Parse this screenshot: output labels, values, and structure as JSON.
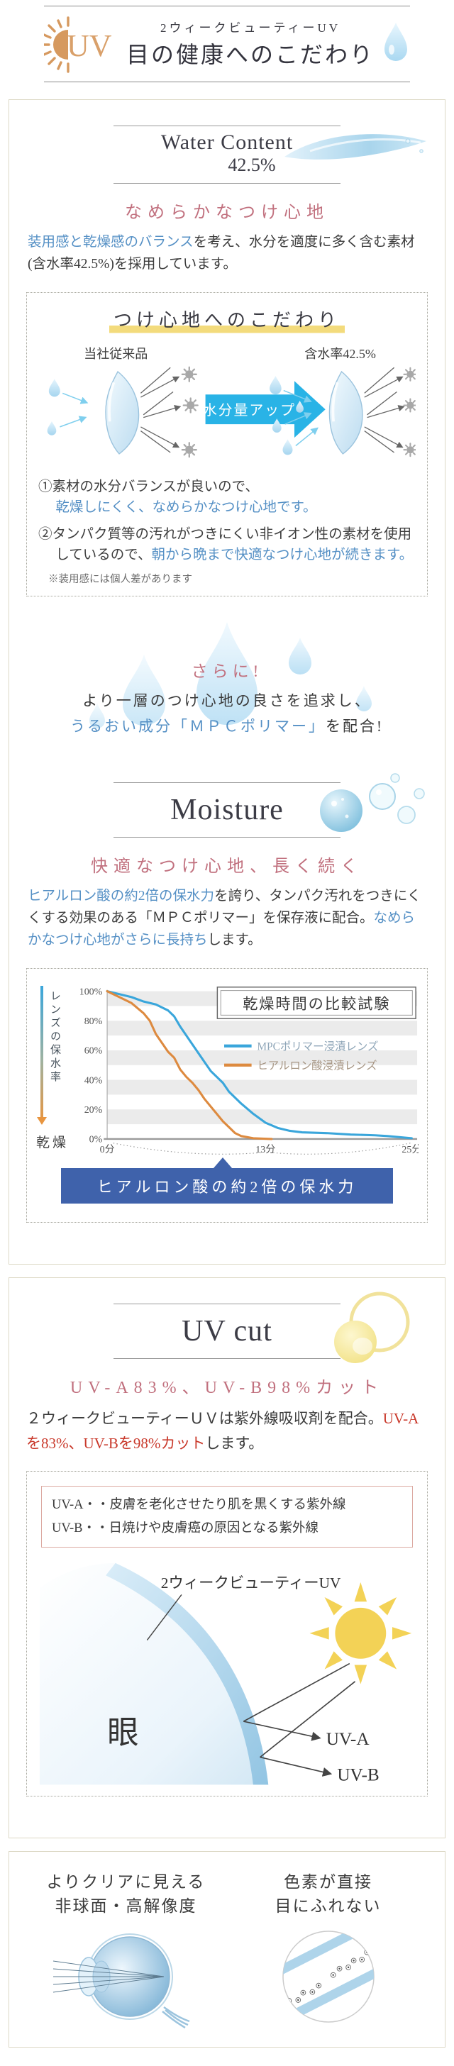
{
  "colors": {
    "accent_blue": "#5590c5",
    "accent_pink": "#c1707e",
    "accent_red": "#c9392b",
    "banner_blue": "#3f62ab",
    "arrow_cyan": "#29b3e6",
    "chart_blue": "#3aa6db",
    "chart_orange": "#dd8a3f",
    "sun_orange": "#d89a66",
    "underline_yellow": "#f3db7c",
    "sun_yellow": "#f3d256"
  },
  "header": {
    "icon": "UV",
    "subtitle": "2ウィークビューティーUV",
    "title": "目の健康へのこだわり"
  },
  "water": {
    "title1": "Water Content",
    "title2": "42.5%",
    "subheading": "なめらかなつけ心地",
    "body": {
      "blue": "装用感と乾燥感のバランス",
      "rest": "を考え、水分を適度に多く含む素材(含水率42.5%)を採用しています。"
    },
    "comfort_box": {
      "title": "つけ心地へのこだわり",
      "label_left": "当社従来品",
      "label_right": "含水率42.5%",
      "arrow": "水分量アップ",
      "points": [
        {
          "prefix": "①素材の水分バランスが良いので、",
          "blue": "乾燥しにくく、なめらかなつけ心地です。"
        },
        {
          "prefix": "②タンパク質等の汚れがつきにくい非イオン性の素材を使用しているので、",
          "blue": "朝から晩まで快適なつけ心地が続きます。"
        }
      ],
      "note": "※装用感には個人差があります"
    },
    "more": {
      "heading": "さらに!",
      "line1": "より一層のつけ心地の良さを追求し、",
      "line2_blue": "うるおい成分「ＭＰＣポリマー」",
      "line2_rest": "を配合!"
    }
  },
  "moisture": {
    "title": "Moisture",
    "subheading": "快適なつけ心地、長く続く",
    "body": {
      "blue1": "ヒアルロン酸の約2倍の保水力",
      "mid": "を誇り、タンパク汚れをつきにくくする効果のある「ＭＰＣポリマー」を保存液に配合。",
      "blue2": "なめらかなつけ心地がさらに長持ち",
      "end": "します。"
    }
  },
  "chart_data": {
    "type": "line",
    "title": "乾燥時間の比較試験",
    "ylabel": "レンズの保水率",
    "ylabel_bottom": "乾燥",
    "xlabel": "",
    "xlim": [
      0,
      25
    ],
    "ylim": [
      0,
      100
    ],
    "y_ticks": [
      "100%",
      "80%",
      "60%",
      "40%",
      "20%",
      "0%"
    ],
    "x_ticks": [
      {
        "minute": 0,
        "label": "0分"
      },
      {
        "minute": 13,
        "label": "13分"
      },
      {
        "minute": 25,
        "label": "25分"
      }
    ],
    "grid": "horizontal-bands",
    "legend_position": "upper-right",
    "series": [
      {
        "name": "MPCポリマー浸漬レンズ",
        "color": "#3aa6db",
        "points": [
          [
            0,
            100
          ],
          [
            1,
            98
          ],
          [
            2,
            96
          ],
          [
            3,
            93
          ],
          [
            4,
            91
          ],
          [
            5,
            87
          ],
          [
            5.5,
            83
          ],
          [
            6,
            76
          ],
          [
            7,
            64
          ],
          [
            8,
            52
          ],
          [
            8.5,
            46
          ],
          [
            9.5,
            38
          ],
          [
            10,
            32
          ],
          [
            11,
            24
          ],
          [
            12,
            17
          ],
          [
            13,
            11
          ],
          [
            14,
            7.5
          ],
          [
            15,
            5.5
          ],
          [
            16,
            4.5
          ],
          [
            18,
            4
          ],
          [
            20,
            3
          ],
          [
            22,
            2.5
          ],
          [
            23,
            2
          ],
          [
            25,
            0.5
          ]
        ]
      },
      {
        "name": "ヒアルロン酸浸漬レンズ",
        "color": "#dd8a3f",
        "points": [
          [
            0,
            100
          ],
          [
            1,
            96
          ],
          [
            2,
            92
          ],
          [
            3,
            85
          ],
          [
            3.5,
            80
          ],
          [
            4,
            71
          ],
          [
            4.5,
            65
          ],
          [
            5,
            59
          ],
          [
            5.5,
            55
          ],
          [
            6,
            47
          ],
          [
            6.5,
            42
          ],
          [
            7,
            38
          ],
          [
            7.5,
            33
          ],
          [
            8,
            27
          ],
          [
            8.5,
            22
          ],
          [
            9,
            17
          ],
          [
            9.5,
            12
          ],
          [
            10,
            8
          ],
          [
            10.5,
            4
          ],
          [
            11,
            2
          ],
          [
            12,
            0.5
          ],
          [
            13.5,
            0
          ]
        ]
      }
    ],
    "annotation": "ヒアルロン酸の約2倍の保水力"
  },
  "uv": {
    "title": "UV cut",
    "subheading": "UV-A83%、UV-B98%カット",
    "body": {
      "start": "２ウィークビューティーＵＶは紫外線吸収剤を配合。",
      "red": "UV-Aを83%、UV-Bを98%カット",
      "end": "します。"
    },
    "info_lines": [
      "UV-A・・皮膚を老化させたり肌を黒くする紫外線",
      "UV-B・・日焼けや皮膚癌の原因となる紫外線"
    ],
    "diagram": {
      "product_label": "2ウィークビューティーUV",
      "eye_label": "眼",
      "uva": "UV-A",
      "uvb": "UV-B"
    }
  },
  "features": {
    "left": {
      "line1": "よりクリアに見える",
      "line2": "非球面・高解像度"
    },
    "right": {
      "line1": "色素が直接",
      "line2": "目にふれない"
    }
  }
}
